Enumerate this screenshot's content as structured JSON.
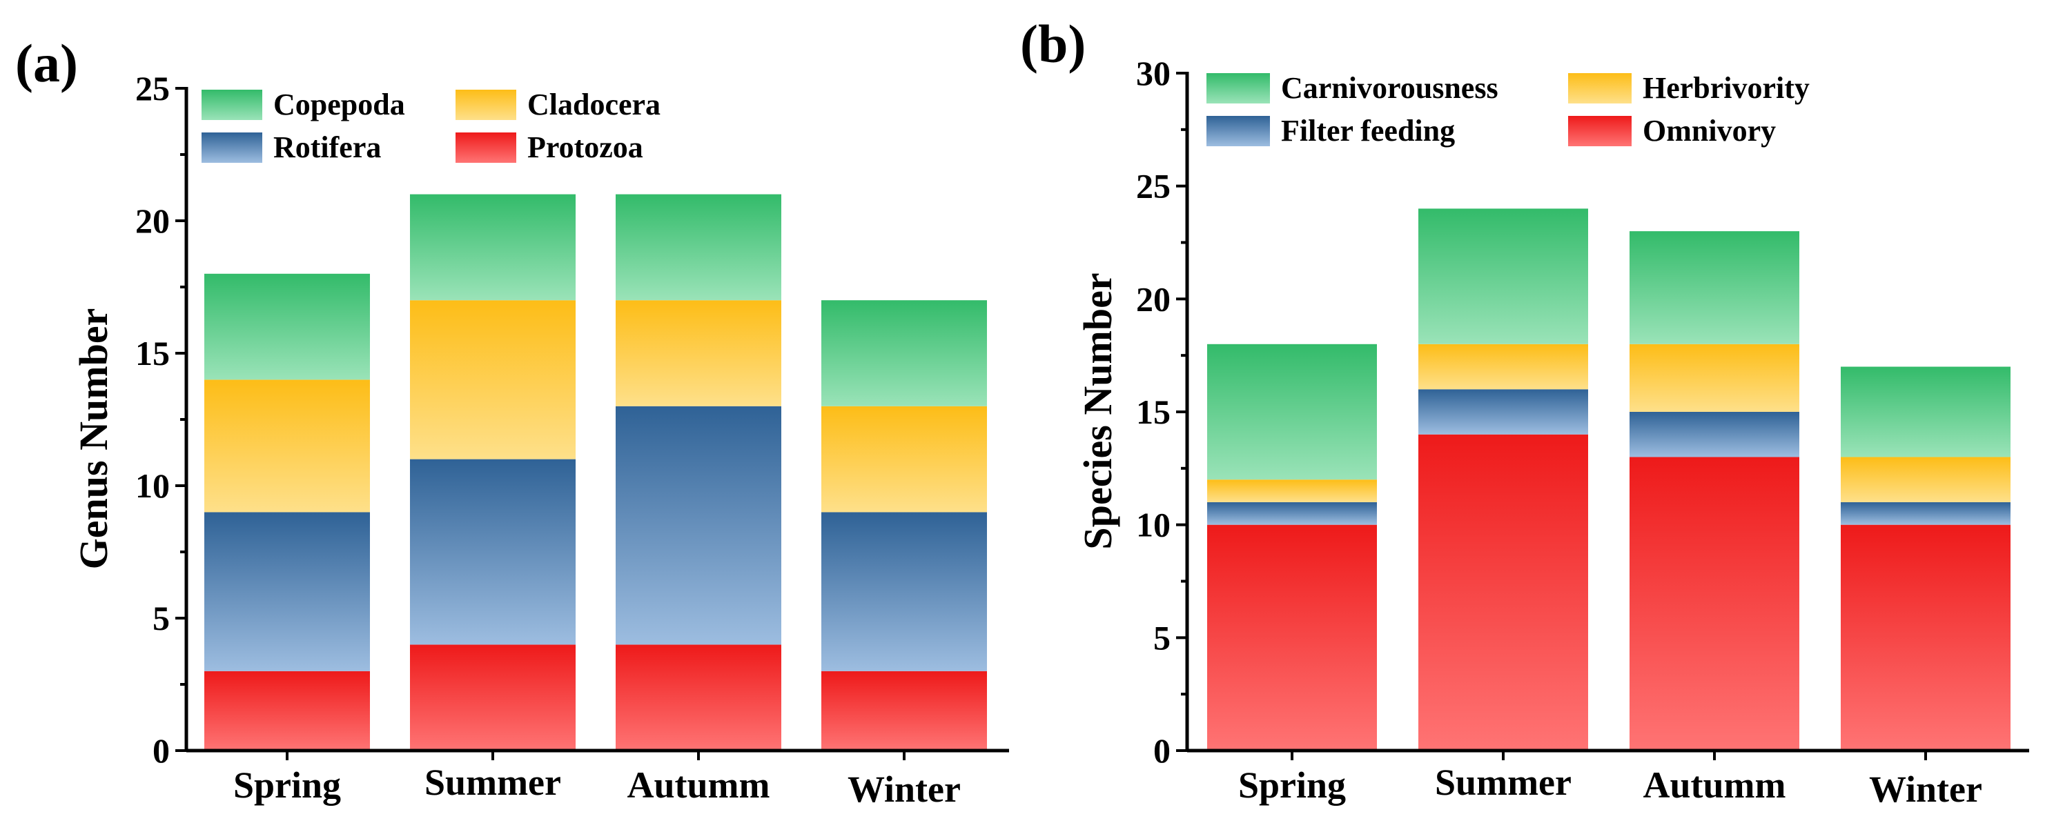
{
  "chart_data": [
    {
      "type": "bar",
      "stacked": true,
      "panel_label": "(a)",
      "ylabel": "Genus Number",
      "xlabel": "",
      "ylim": [
        0,
        25
      ],
      "yticks": [
        "0",
        "5",
        "10",
        "15",
        "20",
        "25"
      ],
      "categories": [
        "Spring",
        "Summer",
        "Autumm",
        "Winter"
      ],
      "series": [
        {
          "name": "Protozoa",
          "values": [
            3,
            4,
            4,
            3
          ],
          "color_top": "#ee1a1a",
          "color_bottom": "#ff7474"
        },
        {
          "name": "Rotifera",
          "values": [
            6,
            7,
            9,
            6
          ],
          "color_top": "#2f6296",
          "color_bottom": "#9dbde0"
        },
        {
          "name": "Cladocera",
          "values": [
            5,
            6,
            4,
            4
          ],
          "color_top": "#fdbd17",
          "color_bottom": "#fee08a"
        },
        {
          "name": "Copepoda",
          "values": [
            4,
            4,
            4,
            4
          ],
          "color_top": "#33bb6a",
          "color_bottom": "#9ae3b8"
        }
      ],
      "legend_order": [
        "Copepoda",
        "Cladocera",
        "Rotifera",
        "Protozoa"
      ],
      "legend_position": "top-left"
    },
    {
      "type": "bar",
      "stacked": true,
      "panel_label": "(b)",
      "ylabel": "Species Number",
      "xlabel": "",
      "ylim": [
        0,
        30
      ],
      "yticks": [
        "0",
        "5",
        "10",
        "15",
        "20",
        "25",
        "30"
      ],
      "categories": [
        "Spring",
        "Summer",
        "Autumm",
        "Winter"
      ],
      "series": [
        {
          "name": "Omnivory",
          "values": [
            10,
            14,
            13,
            10
          ],
          "color_top": "#ee1a1a",
          "color_bottom": "#ff7474"
        },
        {
          "name": "Filter feeding",
          "values": [
            1,
            2,
            2,
            1
          ],
          "color_top": "#2f6296",
          "color_bottom": "#9dbde0"
        },
        {
          "name": "Herbrivority",
          "values": [
            1,
            2,
            3,
            2
          ],
          "color_top": "#fdbd17",
          "color_bottom": "#fee08a"
        },
        {
          "name": "Carnivorousness",
          "values": [
            6,
            6,
            5,
            4
          ],
          "color_top": "#33bb6a",
          "color_bottom": "#9ae3b8"
        }
      ],
      "legend_order": [
        "Carnivorousness",
        "Herbrivority",
        "Filter feeding",
        "Omnivory"
      ],
      "legend_position": "top-left"
    }
  ]
}
